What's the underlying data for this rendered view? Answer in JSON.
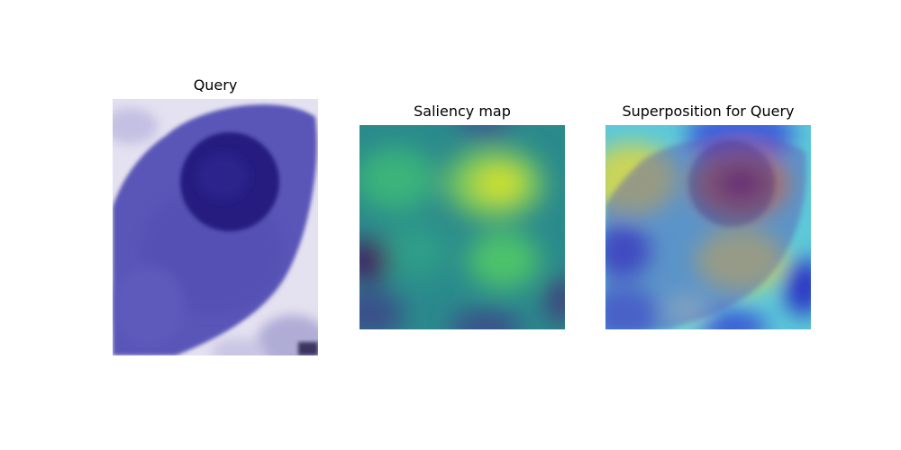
{
  "panels": [
    {
      "title": "Query"
    },
    {
      "title": "Saliency map"
    },
    {
      "title": "Superposition for Query"
    }
  ]
}
